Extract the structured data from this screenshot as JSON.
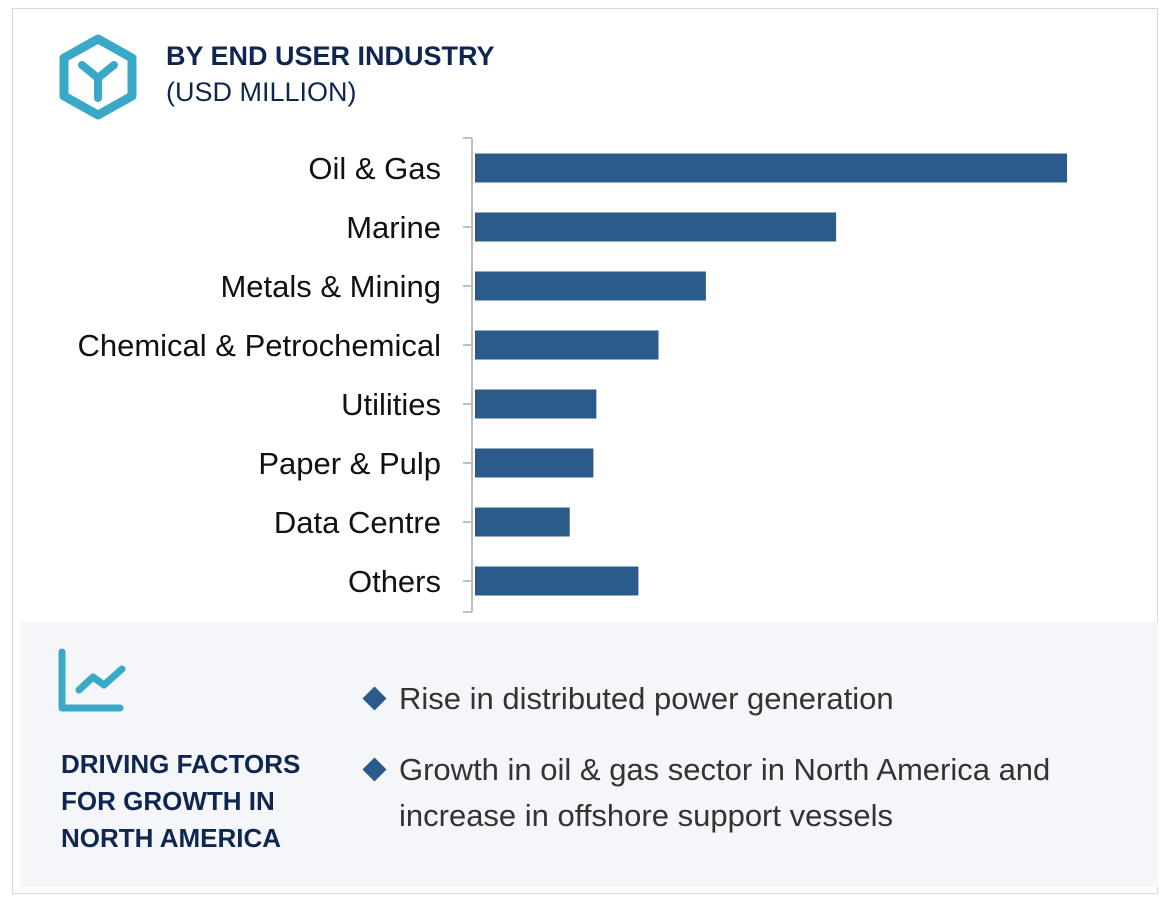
{
  "header": {
    "title": "BY END USER INDUSTRY",
    "subtitle": "(USD MILLION)",
    "icon": "hexagon-y-icon"
  },
  "chart_data": {
    "type": "bar",
    "orientation": "horizontal",
    "title": "BY END USER INDUSTRY",
    "subtitle": "(USD MILLION)",
    "categories": [
      "Oil & Gas",
      "Marine",
      "Metals & Mining",
      "Chemical & Petrochemical",
      "Utilities",
      "Paper & Pulp",
      "Data Centre",
      "Others"
    ],
    "values": [
      100,
      61,
      39,
      31,
      20.5,
      20,
      16,
      27.6
    ],
    "xlim": [
      0,
      100
    ],
    "grid": false,
    "bar_color": "#2b5b8a",
    "axis_color": "#bfbfbf"
  },
  "drivers": {
    "icon": "line-chart-icon",
    "title": "DRIVING FACTORS FOR GROWTH IN NORTH AMERICA",
    "bullets": [
      "Rise in distributed power generation",
      "Growth in oil & gas sector in North America and increase in offshore support vessels"
    ]
  },
  "colors": {
    "accent": "#3aa9c7",
    "navy": "#0f2650",
    "bar": "#2b5b8a",
    "panel": "#f4f6fa"
  }
}
